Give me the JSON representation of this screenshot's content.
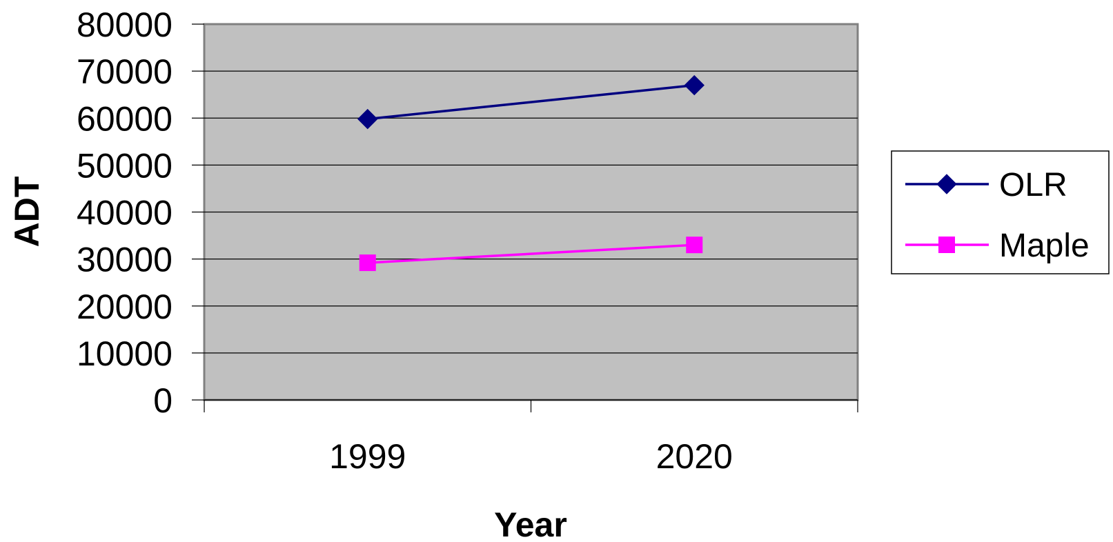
{
  "chart_data": {
    "type": "line",
    "title": "",
    "xlabel": "Year",
    "ylabel": "ADT",
    "categories": [
      "1999",
      "2020"
    ],
    "ylim": [
      0,
      80000
    ],
    "yticks": [
      0,
      10000,
      20000,
      30000,
      40000,
      50000,
      60000,
      70000,
      80000
    ],
    "grid": true,
    "legend": "right",
    "plot_background": "#c0c0c0",
    "series": [
      {
        "name": "OLR",
        "values": [
          59800,
          67000
        ],
        "color": "#000080",
        "marker": "diamond"
      },
      {
        "name": "Maple",
        "values": [
          29200,
          33000
        ],
        "color": "#ff00ff",
        "marker": "square"
      }
    ]
  }
}
